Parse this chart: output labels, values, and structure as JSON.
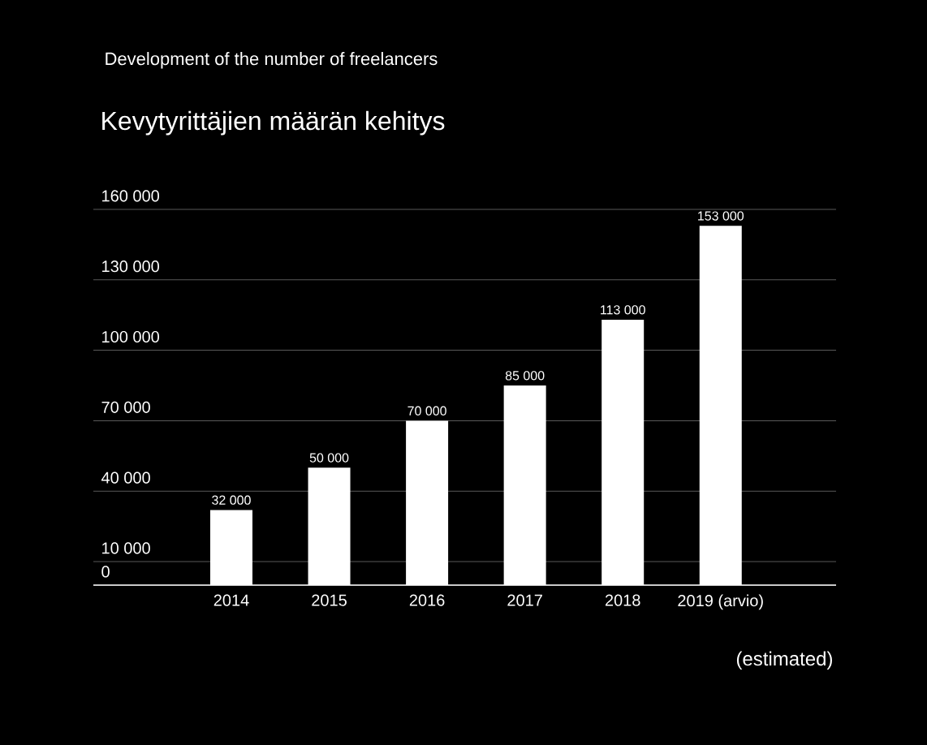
{
  "chart_data": {
    "type": "bar",
    "title": "Kevytyrittäjien määrän kehitys",
    "annotations": [
      "Development of the number of freelancers",
      "(estimated)"
    ],
    "categories": [
      "2014",
      "2015",
      "2016",
      "2017",
      "2018",
      "2019 (arvio)"
    ],
    "values": [
      32000,
      50000,
      70000,
      85000,
      113000,
      153000
    ],
    "value_labels": [
      "32 000",
      "50 000",
      "70 000",
      "85 000",
      "113 000",
      "153 000"
    ],
    "color": "#ffffff",
    "ylim": [
      0,
      160000
    ],
    "yticks": [
      0,
      {
        "value": 10000,
        "label": "10 000"
      },
      {
        "value": 40000,
        "label": "40 000"
      },
      {
        "value": 70000,
        "label": "70 000"
      },
      {
        "value": 100000,
        "label": "100 000"
      },
      {
        "value": 130000,
        "label": "130 000"
      },
      {
        "value": 160000,
        "label": "160 000"
      }
    ],
    "grid": "y"
  }
}
